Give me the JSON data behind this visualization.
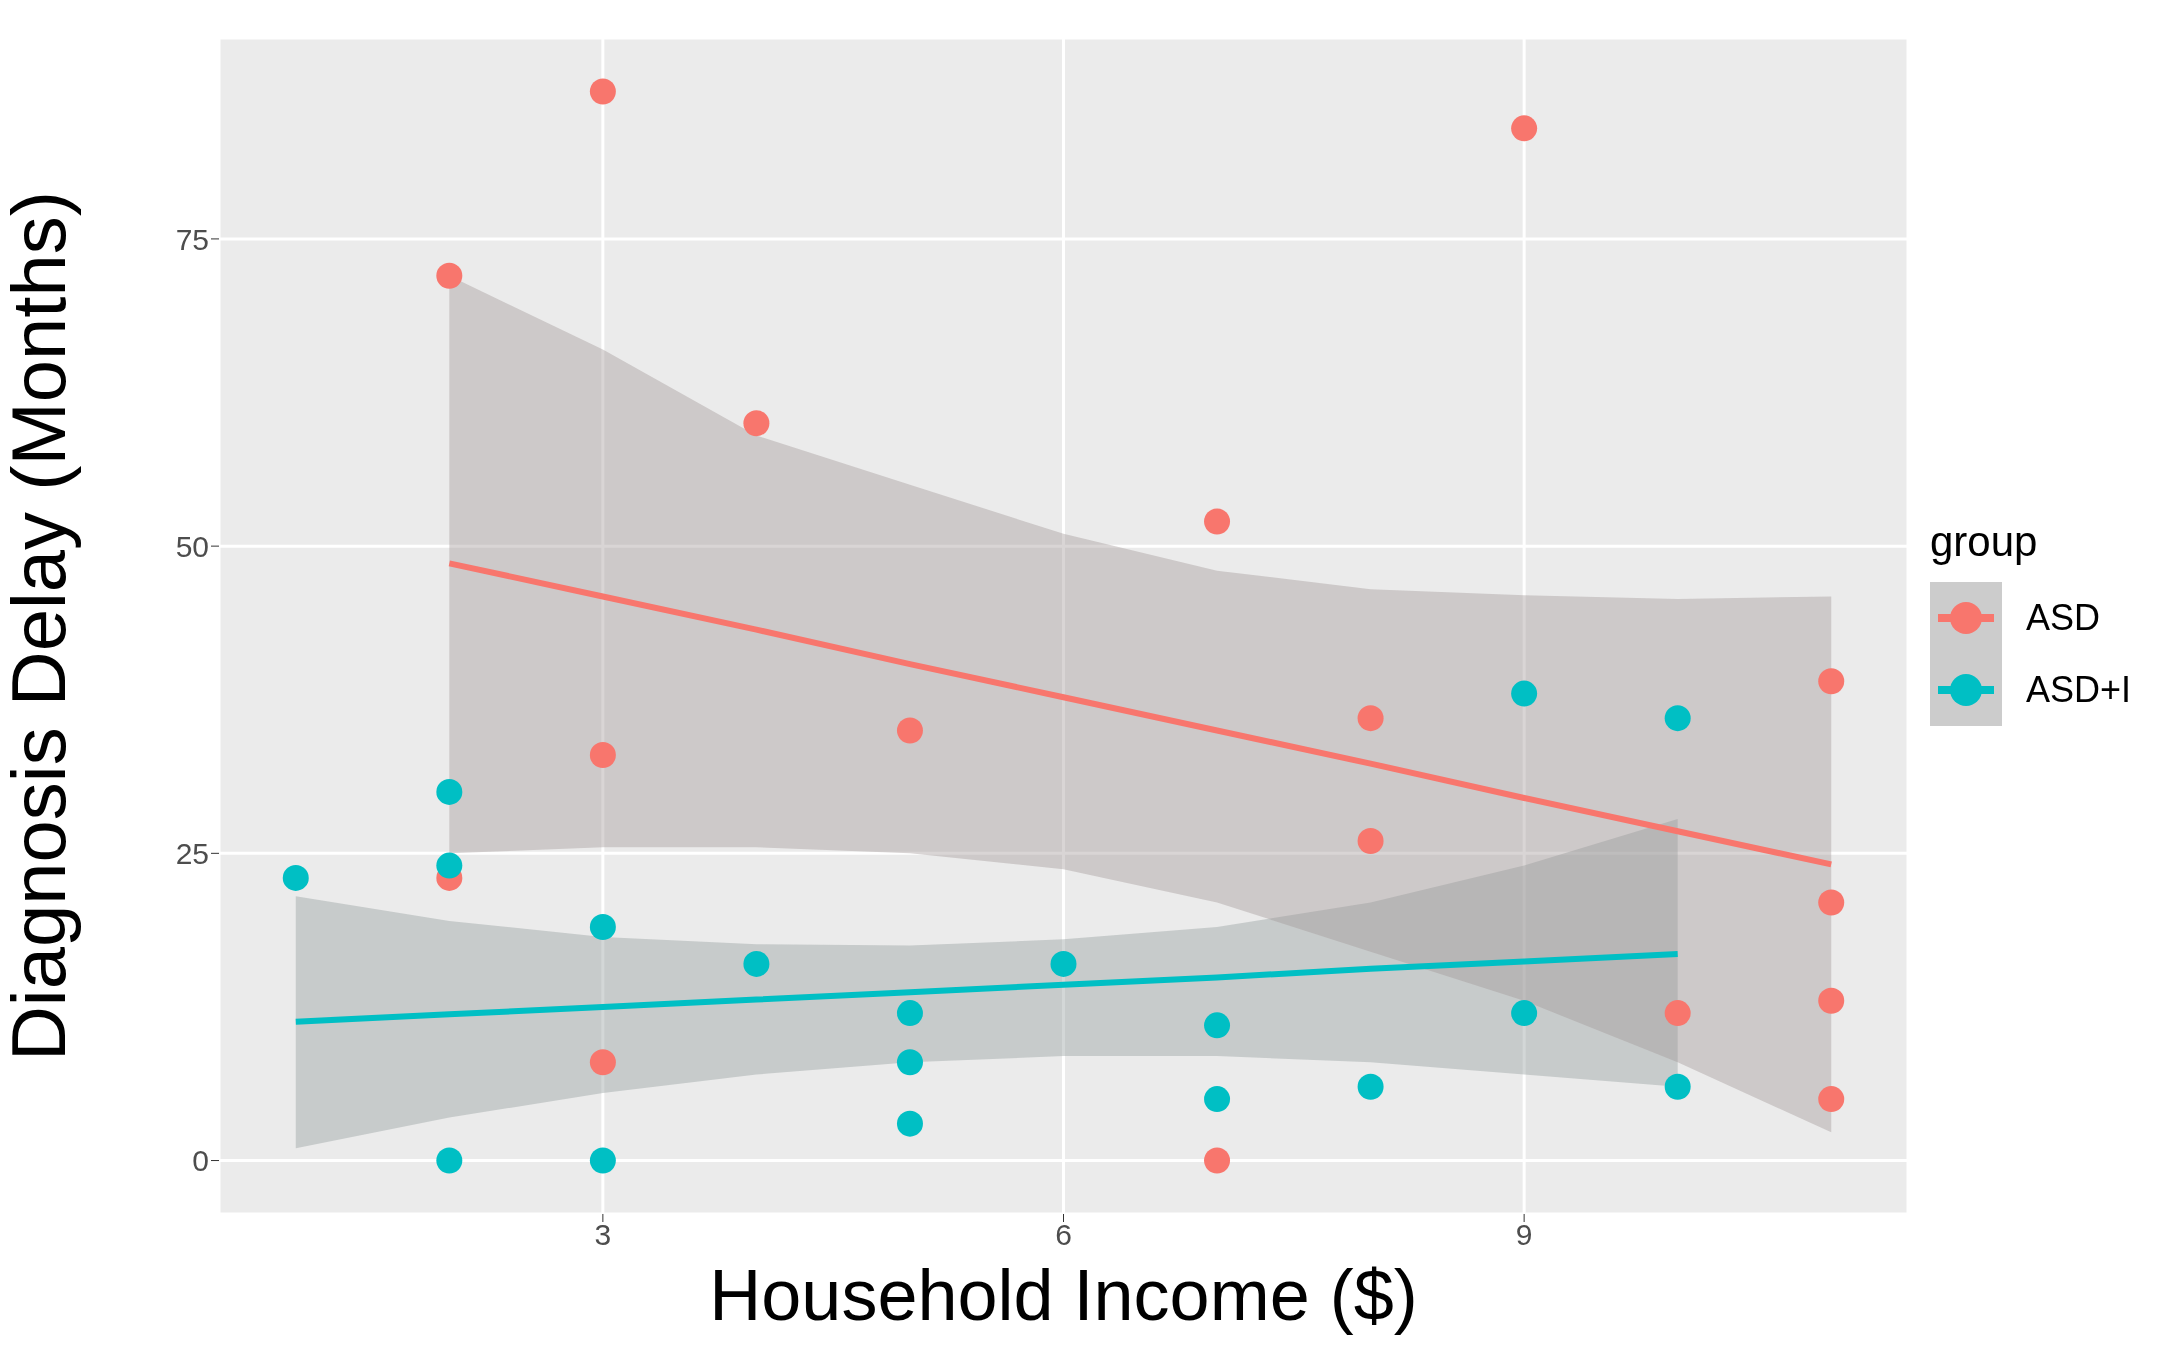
{
  "chart_data": {
    "type": "scatter",
    "xlabel": "Household Income ($)",
    "ylabel": "Diagnosis Delay (Months)",
    "legend_title": "group",
    "legend": "right",
    "grid": true,
    "marker": "circle",
    "xlim": [
      0.5,
      11.5
    ],
    "xticks": [
      3,
      6,
      9
    ],
    "ylim": [
      -4.35,
      91.35
    ],
    "yticks": [
      0,
      25,
      50,
      75
    ],
    "series": [
      {
        "name": "ASD",
        "color": "#f8766d",
        "x": [
          2,
          2,
          3,
          3,
          3,
          4,
          5,
          7,
          7,
          8,
          8,
          9,
          10,
          11,
          11,
          11,
          11
        ],
        "values": [
          72,
          23,
          87,
          33,
          8,
          60,
          35,
          52,
          0,
          36,
          26,
          84,
          12,
          39,
          21,
          13,
          5
        ]
      },
      {
        "name": "ASD+I",
        "color": "#00bfc4",
        "x": [
          1,
          2,
          2,
          2,
          3,
          3,
          4,
          5,
          5,
          5,
          6,
          7,
          7,
          8,
          9,
          9,
          10,
          10
        ],
        "values": [
          23,
          30,
          24,
          0,
          19,
          0,
          16,
          12,
          8,
          3,
          16,
          11,
          5,
          6,
          38,
          12,
          36,
          6
        ]
      },
      {
        "type": "line",
        "marker": "none",
        "line_style": "solid",
        "color": "#f8766d",
        "x": [
          2,
          3,
          4,
          5,
          6,
          7,
          8,
          9,
          10,
          11
        ],
        "values": [
          48.6,
          45.9,
          43.2,
          40.4,
          37.7,
          35.0,
          32.3,
          29.5,
          26.8,
          24.1
        ],
        "lower": [
          25,
          25.5,
          25.5,
          25,
          23.7,
          21,
          17,
          13,
          8,
          2.3
        ],
        "upper": [
          72,
          66,
          59,
          55,
          51,
          48,
          46.5,
          46,
          45.7,
          45.9
        ]
      },
      {
        "type": "line",
        "marker": "none",
        "line_style": "solid",
        "color": "#00bfc4",
        "x": [
          1,
          2,
          3,
          4,
          5,
          6,
          7,
          8,
          9,
          10
        ],
        "values": [
          11.3,
          11.9,
          12.5,
          13.1,
          13.7,
          14.3,
          14.9,
          15.6,
          16.2,
          16.8
        ],
        "lower": [
          1,
          3.5,
          5.5,
          7,
          8,
          8.5,
          8.5,
          8,
          7,
          6
        ],
        "upper": [
          21.5,
          19.5,
          18.2,
          17.6,
          17.5,
          18,
          19,
          21,
          24,
          27.8
        ]
      }
    ]
  }
}
